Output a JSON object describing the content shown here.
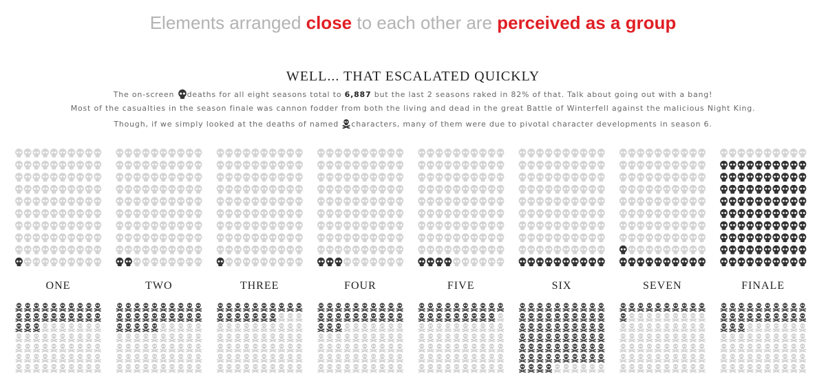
{
  "header": {
    "parts": [
      {
        "text": "Elements arranged ",
        "highlight": false
      },
      {
        "text": "close",
        "highlight": true
      },
      {
        "text": " to each other are ",
        "highlight": false
      },
      {
        "text": "perceived as a group",
        "highlight": true
      }
    ]
  },
  "subtitle": "WELL... THAT ESCALATED QUICKLY",
  "lines": [
    {
      "before": "The on-screen ",
      "icon": "skull",
      "after": "deaths for all eight seasons total to ",
      "bold": "6,887",
      "end": " but the last 2 seasons raked in 82% of that. Talk about going out with a bang!"
    },
    {
      "before": "Most of the casualties in the season finale was cannon fodder from both the living and dead in the great Battle of Winterfell against the malicious Night King."
    },
    {
      "before": "Though, if we simply looked at the deaths of named ",
      "icon": "crossbones",
      "after": "characters, many of them were due to pivotal character developments in season 6."
    }
  ],
  "chart_data": [
    {
      "type": "waffle",
      "icon": "skull",
      "categories": [
        "ONE",
        "TWO",
        "THREE",
        "FOUR",
        "FIVE",
        "SIX",
        "SEVEN",
        "FINALE"
      ],
      "values": [
        1,
        2,
        1,
        3,
        4,
        10,
        11,
        90
      ],
      "grid_rows": 10,
      "grid_cols": 10,
      "fill_from": "bottom",
      "color": "#333333",
      "empty_color": "#d4d4d4"
    },
    {
      "type": "waffle",
      "icon": "crossbones",
      "values": [
        23,
        25,
        17,
        23,
        19,
        64,
        11,
        23
      ],
      "grid_rows": 7,
      "grid_cols": 10,
      "fill_from": "top",
      "color": "#444444",
      "empty_color": "#cfcfcf"
    }
  ]
}
